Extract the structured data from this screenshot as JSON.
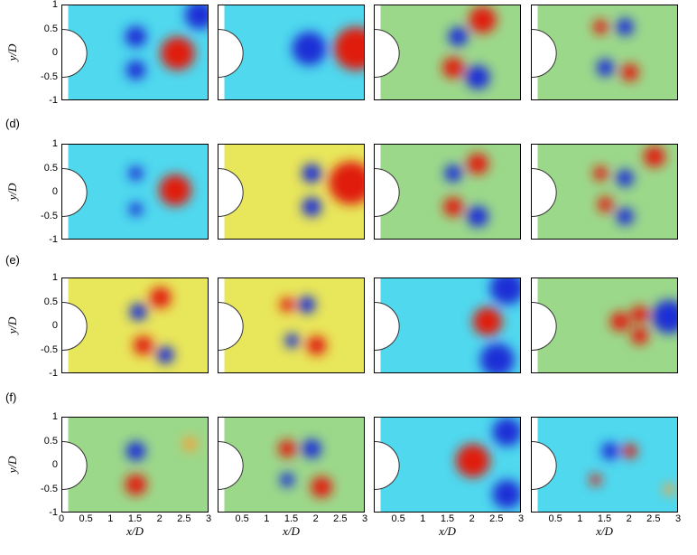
{
  "row_labels": [
    "",
    "(d)",
    "(e)",
    "(f)"
  ],
  "y_axis": {
    "label": "y/D",
    "ticks": [
      "1",
      "0.5",
      "0",
      "-0.5",
      "-1"
    ]
  },
  "x_axis": {
    "label": "x/D",
    "ticks": [
      "0",
      "0.5",
      "1",
      "1.5",
      "2",
      "2.5",
      "3"
    ]
  },
  "colors": {
    "background_green": "#9cd88a",
    "cyan": "#4fd8ee",
    "blue": "#1a2fd6",
    "red": "#e01a10",
    "orange": "#f4a23a",
    "yellow": "#e8e65a"
  },
  "chart_data": {
    "type": "heatmap",
    "description_rows": 4,
    "description_cols": 4,
    "xlim": [
      0,
      3
    ],
    "ylim": [
      -1,
      1
    ],
    "cylinder": {
      "center_x": 0,
      "center_y": 0,
      "radius": 0.5
    },
    "panels": [
      {
        "row": 0,
        "col": 0,
        "background": "cyan",
        "blobs": [
          {
            "x": 1.5,
            "y": 0.35,
            "r": 0.22,
            "c": "blue"
          },
          {
            "x": 1.5,
            "y": -0.35,
            "r": 0.2,
            "c": "blue"
          },
          {
            "x": 2.35,
            "y": 0,
            "r": 0.35,
            "c": "red"
          },
          {
            "x": 2.8,
            "y": 0.8,
            "r": 0.3,
            "c": "blue"
          }
        ]
      },
      {
        "row": 0,
        "col": 1,
        "background": "cyan",
        "blobs": [
          {
            "x": 1.85,
            "y": 0.1,
            "r": 0.35,
            "c": "blue"
          },
          {
            "x": 2.8,
            "y": 0.1,
            "r": 0.45,
            "c": "red"
          }
        ]
      },
      {
        "row": 0,
        "col": 2,
        "background": "green",
        "blobs": [
          {
            "x": 1.7,
            "y": 0.35,
            "r": 0.2,
            "c": "blue"
          },
          {
            "x": 2.2,
            "y": 0.7,
            "r": 0.28,
            "c": "red"
          },
          {
            "x": 1.6,
            "y": -0.3,
            "r": 0.22,
            "c": "red"
          },
          {
            "x": 2.1,
            "y": -0.5,
            "r": 0.25,
            "c": "blue"
          }
        ]
      },
      {
        "row": 0,
        "col": 3,
        "background": "green",
        "blobs": [
          {
            "x": 1.4,
            "y": 0.55,
            "r": 0.15,
            "c": "red"
          },
          {
            "x": 1.9,
            "y": 0.55,
            "r": 0.18,
            "c": "blue"
          },
          {
            "x": 1.5,
            "y": -0.3,
            "r": 0.18,
            "c": "blue"
          },
          {
            "x": 2.0,
            "y": -0.4,
            "r": 0.18,
            "c": "red"
          }
        ]
      },
      {
        "row": 1,
        "col": 0,
        "background": "cyan",
        "blobs": [
          {
            "x": 1.5,
            "y": 0.4,
            "r": 0.15,
            "c": "blue"
          },
          {
            "x": 1.5,
            "y": -0.35,
            "r": 0.14,
            "c": "blue"
          },
          {
            "x": 2.3,
            "y": 0.05,
            "r": 0.33,
            "c": "red"
          }
        ]
      },
      {
        "row": 1,
        "col": 1,
        "background": "yellow",
        "blobs": [
          {
            "x": 1.9,
            "y": 0.4,
            "r": 0.2,
            "c": "blue"
          },
          {
            "x": 1.9,
            "y": -0.3,
            "r": 0.2,
            "c": "blue"
          },
          {
            "x": 2.7,
            "y": 0.2,
            "r": 0.45,
            "c": "red"
          }
        ]
      },
      {
        "row": 1,
        "col": 2,
        "background": "green",
        "blobs": [
          {
            "x": 1.6,
            "y": 0.4,
            "r": 0.18,
            "c": "blue"
          },
          {
            "x": 2.1,
            "y": 0.6,
            "r": 0.22,
            "c": "red"
          },
          {
            "x": 1.6,
            "y": -0.3,
            "r": 0.2,
            "c": "red"
          },
          {
            "x": 2.1,
            "y": -0.5,
            "r": 0.22,
            "c": "blue"
          }
        ]
      },
      {
        "row": 1,
        "col": 3,
        "background": "green",
        "blobs": [
          {
            "x": 1.4,
            "y": 0.4,
            "r": 0.15,
            "c": "red"
          },
          {
            "x": 1.9,
            "y": 0.3,
            "r": 0.18,
            "c": "blue"
          },
          {
            "x": 2.5,
            "y": 0.75,
            "r": 0.22,
            "c": "red"
          },
          {
            "x": 1.5,
            "y": -0.25,
            "r": 0.16,
            "c": "red"
          },
          {
            "x": 1.9,
            "y": -0.5,
            "r": 0.18,
            "c": "blue"
          }
        ]
      },
      {
        "row": 2,
        "col": 0,
        "background": "yellow",
        "blobs": [
          {
            "x": 1.55,
            "y": 0.3,
            "r": 0.18,
            "c": "blue"
          },
          {
            "x": 2.0,
            "y": 0.6,
            "r": 0.22,
            "c": "red"
          },
          {
            "x": 1.65,
            "y": -0.4,
            "r": 0.2,
            "c": "red"
          },
          {
            "x": 2.1,
            "y": -0.6,
            "r": 0.18,
            "c": "blue"
          }
        ]
      },
      {
        "row": 2,
        "col": 1,
        "background": "yellow",
        "blobs": [
          {
            "x": 1.4,
            "y": 0.45,
            "r": 0.15,
            "c": "red"
          },
          {
            "x": 1.8,
            "y": 0.45,
            "r": 0.18,
            "c": "blue"
          },
          {
            "x": 1.5,
            "y": -0.3,
            "r": 0.15,
            "c": "blue"
          },
          {
            "x": 2.0,
            "y": -0.4,
            "r": 0.2,
            "c": "red"
          }
        ]
      },
      {
        "row": 2,
        "col": 2,
        "background": "cyan",
        "blobs": [
          {
            "x": 2.3,
            "y": 0.1,
            "r": 0.3,
            "c": "red"
          },
          {
            "x": 2.7,
            "y": 0.8,
            "r": 0.35,
            "c": "blue"
          },
          {
            "x": 2.5,
            "y": -0.7,
            "r": 0.35,
            "c": "blue"
          }
        ]
      },
      {
        "row": 2,
        "col": 3,
        "background": "green",
        "blobs": [
          {
            "x": 1.8,
            "y": 0.1,
            "r": 0.2,
            "c": "red"
          },
          {
            "x": 2.2,
            "y": 0.25,
            "r": 0.18,
            "c": "red"
          },
          {
            "x": 2.2,
            "y": -0.2,
            "r": 0.18,
            "c": "red"
          },
          {
            "x": 2.8,
            "y": 0.2,
            "r": 0.35,
            "c": "blue"
          }
        ]
      },
      {
        "row": 3,
        "col": 0,
        "background": "green",
        "blobs": [
          {
            "x": 1.5,
            "y": 0.3,
            "r": 0.2,
            "c": "blue"
          },
          {
            "x": 1.5,
            "y": -0.4,
            "r": 0.22,
            "c": "red"
          },
          {
            "x": 2.6,
            "y": 0.45,
            "r": 0.15,
            "c": "orange"
          }
        ]
      },
      {
        "row": 3,
        "col": 1,
        "background": "green",
        "blobs": [
          {
            "x": 1.4,
            "y": 0.35,
            "r": 0.18,
            "c": "red"
          },
          {
            "x": 1.9,
            "y": 0.35,
            "r": 0.2,
            "c": "blue"
          },
          {
            "x": 1.4,
            "y": -0.3,
            "r": 0.15,
            "c": "blue"
          },
          {
            "x": 2.1,
            "y": -0.45,
            "r": 0.22,
            "c": "red"
          }
        ]
      },
      {
        "row": 3,
        "col": 2,
        "background": "cyan",
        "blobs": [
          {
            "x": 2.0,
            "y": 0.1,
            "r": 0.35,
            "c": "red"
          },
          {
            "x": 2.7,
            "y": 0.7,
            "r": 0.3,
            "c": "blue"
          },
          {
            "x": 2.7,
            "y": -0.6,
            "r": 0.3,
            "c": "blue"
          }
        ]
      },
      {
        "row": 3,
        "col": 3,
        "background": "cyan",
        "blobs": [
          {
            "x": 1.6,
            "y": 0.3,
            "r": 0.18,
            "c": "blue"
          },
          {
            "x": 1.3,
            "y": -0.3,
            "r": 0.12,
            "c": "red"
          },
          {
            "x": 2.0,
            "y": 0.3,
            "r": 0.15,
            "c": "red"
          },
          {
            "x": 2.8,
            "y": -0.5,
            "r": 0.12,
            "c": "orange"
          }
        ]
      }
    ]
  }
}
